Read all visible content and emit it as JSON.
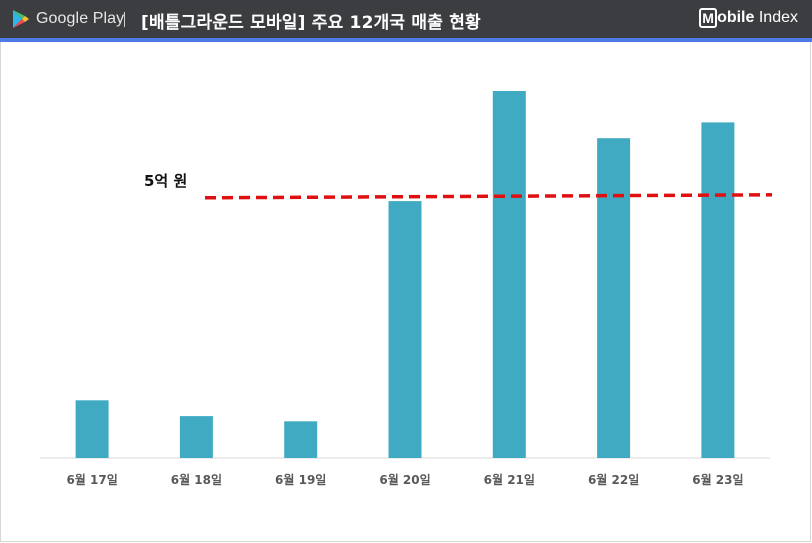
{
  "header": {
    "brand_left": "Google Play",
    "title": "[배틀그라운드 모바일] 주요 12개국 매출 현황",
    "brand_right_box": "M",
    "brand_right_bold": "obile",
    "brand_right_thin": " Index"
  },
  "colors": {
    "header_bg": "#3b3d40",
    "accent": "#4d7be8",
    "bar": "#40aac2",
    "threshold": "#e01010"
  },
  "chart_data": {
    "type": "bar",
    "title": "[배틀그라운드 모바일] 주요 12개국 매출 현황",
    "xlabel": "",
    "ylabel": "",
    "categories": [
      "6월 17일",
      "6월 18일",
      "6월 19일",
      "6월 20일",
      "6월 21일",
      "6월 22일",
      "6월 23일"
    ],
    "unit": "억 원",
    "values": [
      1.1,
      0.8,
      0.7,
      4.9,
      7.0,
      6.1,
      6.4
    ],
    "ylim": [
      0,
      7.4
    ],
    "grid": false,
    "legend": "none",
    "annotations": [
      {
        "type": "threshold-line",
        "value": 5,
        "label": "5억 원",
        "style": "dashed"
      }
    ]
  }
}
